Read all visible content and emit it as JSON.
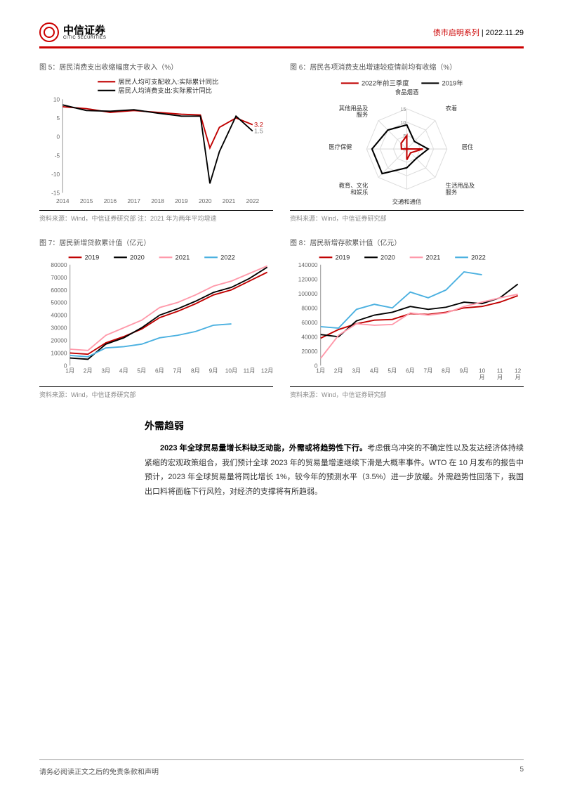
{
  "header": {
    "logo_cn": "中信证券",
    "logo_en": "CITIC SECURITIES",
    "series": "债市启明系列",
    "date": "2022.11.29"
  },
  "chart5": {
    "type": "line",
    "title": "图 5：居民消费支出收缩幅度大于收入（%）",
    "legend": [
      "居民人均可支配收入:实际累计同比",
      "居民人均消费支出:实际累计同比"
    ],
    "colors": [
      "#c00000",
      "#000000"
    ],
    "xlabels": [
      "2014",
      "2015",
      "2016",
      "2017",
      "2018",
      "2019",
      "2020",
      "2021",
      "2022"
    ],
    "ylim": [
      -15,
      10
    ],
    "ytick_step": 5,
    "end_labels": [
      "3.2",
      "1.5"
    ],
    "end_label_colors": [
      "#c00000",
      "#888888"
    ],
    "series": [
      [
        8.0,
        7.5,
        6.5,
        7.0,
        6.5,
        6.0,
        5.8,
        -3.0,
        2.5,
        5.0,
        3.2
      ],
      [
        8.5,
        7.0,
        6.8,
        7.2,
        6.3,
        5.5,
        5.5,
        -12.5,
        -4.0,
        5.5,
        1.5
      ]
    ],
    "x_coords": [
      0,
      1,
      2,
      3,
      4,
      5,
      5.8,
      6.2,
      6.6,
      7.3,
      8
    ],
    "source": "资料来源：Wind，中信证券研究部  注：2021 年为两年平均增速"
  },
  "chart6": {
    "type": "radar",
    "title": "图 6：居民各项消费支出增速较疫情前均有收缩（%）",
    "legend": [
      "2022年前三季度",
      "2019年"
    ],
    "colors": [
      "#c00000",
      "#000000"
    ],
    "axes": [
      "食品烟酒",
      "衣着",
      "居住",
      "生活用品及服务",
      "交通和通信",
      "教育、文化和娱乐",
      "医疗保健",
      "其他用品及服务"
    ],
    "rings": [
      0,
      5,
      10,
      15
    ],
    "ring_color": "#dddddd",
    "values": [
      [
        5,
        -5,
        6,
        2,
        4,
        -5,
        2,
        3
      ],
      [
        9,
        4,
        8,
        5,
        7,
        13,
        13,
        10
      ]
    ],
    "source": "资料来源：Wind，中信证券研究部"
  },
  "chart7": {
    "type": "line",
    "title": "图 7：居民新增贷款累计值（亿元）",
    "legend": [
      "2019",
      "2020",
      "2021",
      "2022"
    ],
    "colors": [
      "#c00000",
      "#000000",
      "#ff99aa",
      "#4ab0e0"
    ],
    "xlabels": [
      "1月",
      "2月",
      "3月",
      "4月",
      "5月",
      "6月",
      "7月",
      "8月",
      "9月",
      "10月",
      "11月",
      "12月"
    ],
    "ylim": [
      0,
      80000
    ],
    "ytick_step": 10000,
    "series": [
      [
        10000,
        9000,
        18000,
        23000,
        29000,
        38000,
        43000,
        49000,
        56000,
        60000,
        67000,
        74000
      ],
      [
        6000,
        5000,
        17000,
        22000,
        30000,
        40000,
        45000,
        51000,
        58000,
        62000,
        69000,
        78000
      ],
      [
        13000,
        12000,
        24000,
        30000,
        36000,
        46000,
        50000,
        56000,
        63000,
        67000,
        73000,
        79000
      ],
      [
        8000,
        7000,
        14000,
        15000,
        17000,
        22000,
        24000,
        27000,
        32000,
        33000,
        null,
        null
      ]
    ],
    "source": "资料来源：Wind，中信证券研究部"
  },
  "chart8": {
    "type": "line",
    "title": "图 8：居民新增存款累计值（亿元）",
    "legend": [
      "2019",
      "2020",
      "2021",
      "2022"
    ],
    "colors": [
      "#c00000",
      "#000000",
      "#ff99aa",
      "#4ab0e0"
    ],
    "xlabels": [
      "1月",
      "2月",
      "3月",
      "4月",
      "5月",
      "6月",
      "7月",
      "8月",
      "9月",
      "10\n月",
      "11\n月",
      "12\n月"
    ],
    "ylim": [
      0,
      140000
    ],
    "ytick_step": 20000,
    "series": [
      [
        38000,
        50000,
        58000,
        63000,
        64000,
        72000,
        71000,
        74000,
        80000,
        82000,
        88000,
        97000
      ],
      [
        43000,
        40000,
        62000,
        70000,
        74000,
        82000,
        78000,
        81000,
        88000,
        86000,
        94000,
        113000
      ],
      [
        10000,
        42000,
        58000,
        56000,
        57000,
        73000,
        70000,
        73000,
        82000,
        88000,
        94000,
        99000
      ],
      [
        54000,
        52000,
        78000,
        85000,
        80000,
        102000,
        94000,
        105000,
        130000,
        126000,
        null,
        null
      ]
    ],
    "source": "资料来源：Wind，中信证券研究部"
  },
  "body": {
    "heading": "外需趋弱",
    "para_bold": "2023 年全球贸易量增长料缺乏动能，外需或将趋势性下行。",
    "para_rest": "考虑俄乌冲突的不确定性以及发达经济体持续紧缩的宏观政策组合，我们预计全球 2023 年的贸易量增速继续下滑是大概率事件。WTO 在 10 月发布的报告中预计，2023 年全球贸易量将同比增长 1%，较今年的预测水平（3.5%）进一步放缓。外需趋势性回落下，我国出口料将面临下行风险，对经济的支撑将有所趋弱。"
  },
  "footer": {
    "disclaimer": "请务必阅读正文之后的免责条款和声明",
    "page": "5"
  }
}
